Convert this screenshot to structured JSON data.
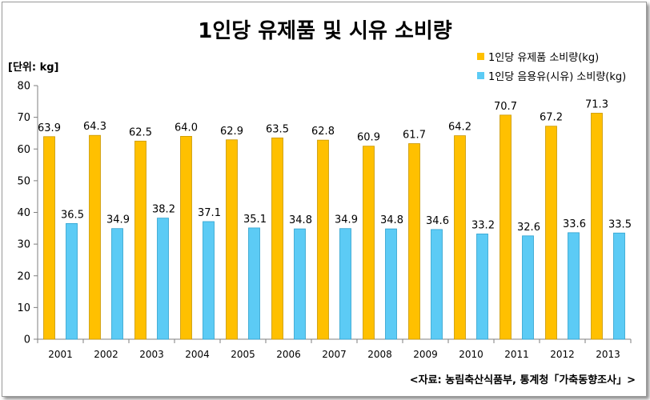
{
  "title": "1인당 유제품 및 시유 소비량",
  "unit_label": "[단위: kg]",
  "source": "<자료: 농림축산식품부, 통계청「가축동향조사」>",
  "colors": {
    "series1": "#FFC000",
    "series2": "#5CCBF5",
    "axis": "#7f7f7f",
    "gridline": "#d9d9d9"
  },
  "chart_data": {
    "type": "bar",
    "categories": [
      "2001",
      "2002",
      "2003",
      "2004",
      "2005",
      "2006",
      "2007",
      "2008",
      "2009",
      "2010",
      "2011",
      "2012",
      "2013"
    ],
    "series": [
      {
        "name": "1인당 유제품 소비량(kg)",
        "values": [
          63.9,
          64.3,
          62.5,
          64.0,
          62.9,
          63.5,
          62.8,
          60.9,
          61.7,
          64.2,
          70.7,
          67.2,
          71.3
        ],
        "labels": [
          "63.9",
          "64.3",
          "62.5",
          "64.0",
          "62.9",
          "63.5",
          "62.8",
          "60.9",
          "61.7",
          "64.2",
          "70.7",
          "67.2",
          "71.3"
        ]
      },
      {
        "name": "1인당 음용유(시유) 소비량(kg)",
        "values": [
          36.5,
          34.9,
          38.2,
          37.1,
          35.1,
          34.8,
          34.9,
          34.8,
          34.6,
          33.2,
          32.6,
          33.6,
          33.5
        ],
        "labels": [
          "36.5",
          "34.9",
          "38.2",
          "37.1",
          "35.1",
          "34.8",
          "34.9",
          "34.8",
          "34.6",
          "33.2",
          "32.6",
          "33.6",
          "33.5"
        ]
      }
    ],
    "ylim": [
      0,
      80
    ],
    "yticks": [
      0,
      10,
      20,
      30,
      40,
      50,
      60,
      70,
      80
    ],
    "ytick_labels": [
      "0",
      "10",
      "20",
      "30",
      "40",
      "50",
      "60",
      "70",
      "80"
    ],
    "grid": false,
    "legend_position": "top-right"
  }
}
